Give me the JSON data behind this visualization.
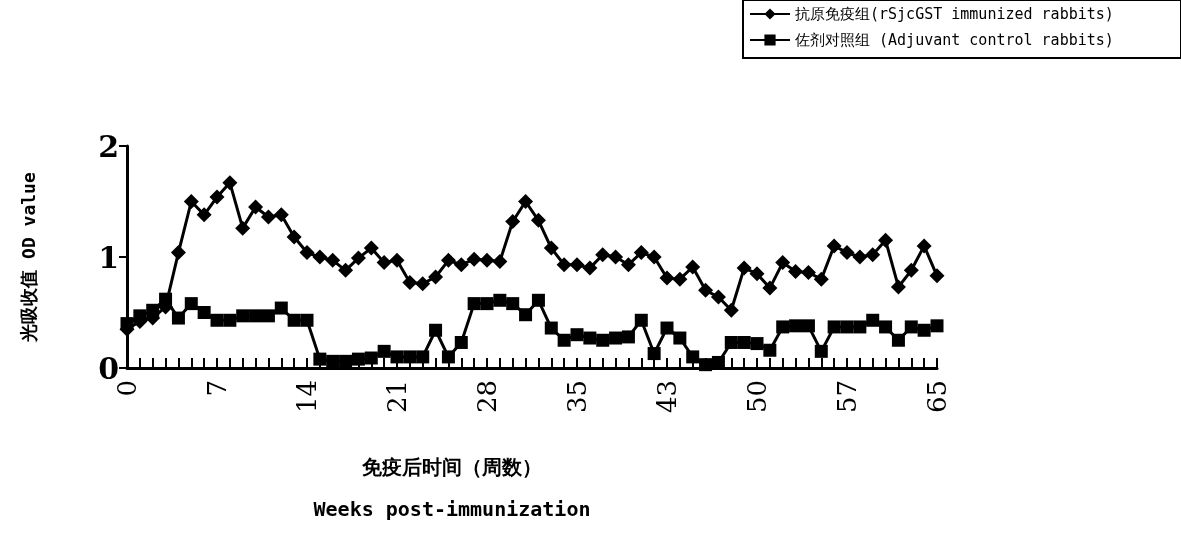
{
  "chart_data": {
    "type": "line",
    "xlabel": "免疫后时间（周数）\nWeeks post-immunization",
    "ylabel": "光吸收值 OD value",
    "categories": [
      "0",
      null,
      null,
      null,
      null,
      null,
      null,
      "7",
      null,
      null,
      null,
      null,
      null,
      null,
      "14",
      null,
      null,
      null,
      null,
      null,
      null,
      "21",
      null,
      null,
      null,
      null,
      null,
      null,
      "28",
      null,
      null,
      null,
      null,
      null,
      null,
      "35",
      null,
      null,
      null,
      null,
      null,
      null,
      "43",
      null,
      null,
      null,
      null,
      null,
      null,
      "50",
      null,
      null,
      null,
      null,
      null,
      null,
      "57",
      null,
      null,
      null,
      null,
      null,
      null,
      "65"
    ],
    "ylim": [
      0,
      2
    ],
    "yticks": [
      0,
      1,
      2
    ],
    "grid": false,
    "legend": "top right",
    "line_style": "solid",
    "series": [
      {
        "name": "抗原免疫组(rSjcGST immunized rabbits)",
        "color": "#000000",
        "marker": "diamond",
        "values": [
          0.35,
          0.42,
          0.45,
          0.55,
          1.04,
          1.5,
          1.38,
          1.54,
          1.67,
          1.26,
          1.45,
          1.36,
          1.38,
          1.18,
          1.04,
          1.0,
          0.97,
          0.88,
          0.99,
          1.08,
          0.95,
          0.97,
          0.77,
          0.76,
          0.82,
          0.97,
          0.93,
          0.98,
          0.97,
          0.96,
          1.32,
          1.5,
          1.33,
          1.08,
          0.93,
          0.93,
          0.9,
          1.02,
          1.0,
          0.93,
          1.04,
          1.0,
          0.81,
          0.8,
          0.91,
          0.7,
          0.64,
          0.52,
          0.9,
          0.85,
          0.72,
          0.95,
          0.87,
          0.86,
          0.8,
          1.1,
          1.04,
          1.0,
          1.02,
          1.15,
          0.73,
          0.88,
          1.1,
          0.83
        ]
      },
      {
        "name": "佐剂对照组 (Adjuvant control rabbits)",
        "color": "#000000",
        "marker": "square",
        "values": [
          0.4,
          0.47,
          0.52,
          0.62,
          0.45,
          0.58,
          0.5,
          0.43,
          0.43,
          0.47,
          0.47,
          0.47,
          0.54,
          0.43,
          0.43,
          0.08,
          0.06,
          0.06,
          0.08,
          0.09,
          0.15,
          0.1,
          0.1,
          0.1,
          0.34,
          0.1,
          0.23,
          0.58,
          0.58,
          0.61,
          0.58,
          0.48,
          0.61,
          0.36,
          0.25,
          0.3,
          0.27,
          0.25,
          0.27,
          0.28,
          0.43,
          0.13,
          0.36,
          0.27,
          0.1,
          0.03,
          0.05,
          0.23,
          0.23,
          0.22,
          0.16,
          0.37,
          0.38,
          0.38,
          0.15,
          0.37,
          0.37,
          0.37,
          0.43,
          0.37,
          0.25,
          0.37,
          0.34,
          0.38
        ]
      }
    ]
  }
}
